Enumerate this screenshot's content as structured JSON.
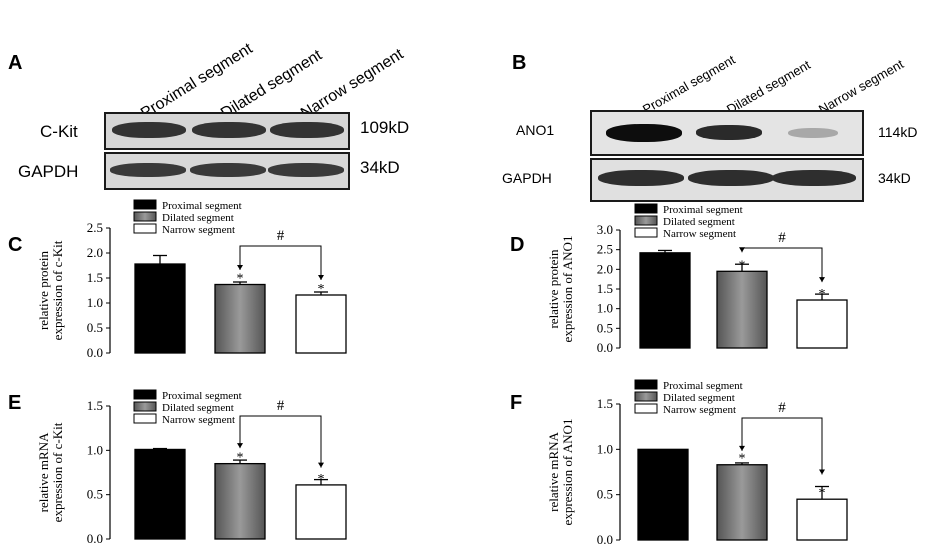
{
  "panels": {
    "A": "A",
    "B": "B",
    "C": "C",
    "D": "D",
    "E": "E",
    "F": "F"
  },
  "western_blots": [
    {
      "panel": "A",
      "lanes": [
        "Proximal segment",
        "Dilated segment",
        "Narrow segment"
      ],
      "rows": [
        {
          "protein": "C-Kit",
          "size": "109kD",
          "intensity": [
            0.85,
            0.85,
            0.85
          ]
        },
        {
          "protein": "GAPDH",
          "size": "34kD",
          "intensity": [
            0.8,
            0.8,
            0.8
          ]
        }
      ]
    },
    {
      "panel": "B",
      "lanes": [
        "Proximal segment",
        "Dilated segment",
        "Narrow segment"
      ],
      "rows": [
        {
          "protein": "ANO1",
          "size": "114kD",
          "intensity": [
            1.0,
            0.85,
            0.3
          ]
        },
        {
          "protein": "GAPDH",
          "size": "34kD",
          "intensity": [
            0.9,
            0.9,
            0.9
          ]
        }
      ]
    }
  ],
  "colors": {
    "proximal": "#000000",
    "dilated": "#777777",
    "narrow": "#ffffff"
  },
  "chart_data": [
    {
      "panel": "C",
      "type": "bar",
      "categories": [
        "Proximal segment",
        "Dilated segment",
        "Narrow segment"
      ],
      "values": [
        1.78,
        1.37,
        1.16
      ],
      "errors": [
        0.17,
        0.05,
        0.06
      ],
      "ylabel": [
        "relative protein",
        "expression of c-Kit"
      ],
      "ylim": [
        0,
        2.5
      ],
      "yticks": [
        "0.0",
        "0.5",
        "1.0",
        "1.5",
        "2.0",
        "2.5"
      ],
      "star": [
        false,
        true,
        true
      ],
      "star_label": "*",
      "hash_label": "#",
      "legend": [
        "Proximal segment",
        "Dilated segment",
        "Narrow segment"
      ]
    },
    {
      "panel": "D",
      "type": "bar",
      "categories": [
        "Proximal segment",
        "Dilated segment",
        "Narrow segment"
      ],
      "values": [
        2.42,
        1.95,
        1.22
      ],
      "errors": [
        0.06,
        0.18,
        0.15
      ],
      "ylabel": [
        "relative protein",
        "expression of ANO1"
      ],
      "ylim": [
        0,
        3.0
      ],
      "yticks": [
        "0.0",
        "0.5",
        "1.0",
        "1.5",
        "2.0",
        "2.5",
        "3.0"
      ],
      "star": [
        false,
        true,
        true
      ],
      "star_label": "*",
      "hash_label": "#",
      "legend": [
        "Proximal segment",
        "Dilated segment",
        "Narrow segment"
      ]
    },
    {
      "panel": "E",
      "type": "bar",
      "categories": [
        "Proximal segment",
        "Dilated segment",
        "Narrow segment"
      ],
      "values": [
        1.01,
        0.85,
        0.61
      ],
      "errors": [
        0.01,
        0.04,
        0.06
      ],
      "ylabel": [
        "relative mRNA",
        "expression of c-Kit"
      ],
      "ylim": [
        0,
        1.5
      ],
      "yticks": [
        "0.0",
        "0.5",
        "1.0",
        "1.5"
      ],
      "star": [
        false,
        true,
        true
      ],
      "star_label": "*",
      "hash_label": "#",
      "legend": [
        "Proximal segment",
        "Dilated segment",
        "Narrow segment"
      ]
    },
    {
      "panel": "F",
      "type": "bar",
      "categories": [
        "Proximal segment",
        "Dilated segment",
        "Narrow segment"
      ],
      "values": [
        1.0,
        0.83,
        0.45
      ],
      "errors": [
        0.0,
        0.02,
        0.14
      ],
      "ylabel": [
        "relative mRNA",
        "expression of ANO1"
      ],
      "ylim": [
        0,
        1.5
      ],
      "yticks": [
        "0.0",
        "0.5",
        "1.0",
        "1.5"
      ],
      "star": [
        false,
        true,
        true
      ],
      "star_label": "*",
      "hash_label": "#",
      "legend": [
        "Proximal segment",
        "Dilated segment",
        "Narrow segment"
      ]
    }
  ]
}
